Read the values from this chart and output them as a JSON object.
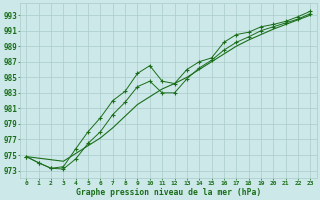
{
  "x": [
    0,
    1,
    2,
    3,
    4,
    5,
    6,
    7,
    8,
    9,
    10,
    11,
    12,
    13,
    14,
    15,
    16,
    17,
    18,
    19,
    20,
    21,
    22,
    23
  ],
  "line_smooth": [
    974.8,
    974.6,
    974.4,
    974.2,
    975.2,
    976.2,
    977.2,
    978.5,
    980.0,
    981.5,
    982.5,
    983.5,
    984.2,
    985.0,
    986.0,
    987.0,
    988.0,
    989.0,
    989.8,
    990.5,
    991.2,
    991.8,
    992.4,
    993.0
  ],
  "line_upper": [
    974.8,
    974.0,
    973.3,
    973.5,
    975.8,
    978.0,
    979.8,
    982.0,
    983.2,
    985.5,
    986.5,
    984.5,
    984.2,
    986.0,
    987.0,
    987.5,
    989.5,
    990.5,
    990.8,
    991.5,
    991.8,
    992.2,
    992.8,
    993.5
  ],
  "line_lower": [
    974.8,
    974.0,
    973.3,
    973.2,
    974.5,
    976.5,
    978.0,
    980.2,
    981.8,
    983.8,
    984.5,
    983.0,
    983.0,
    984.8,
    986.2,
    987.2,
    988.5,
    989.5,
    990.2,
    991.0,
    991.5,
    992.0,
    992.5,
    993.2
  ],
  "bg_color": "#cce8e8",
  "grid_color": "#aacccc",
  "line_color": "#1a6e1a",
  "xlabel": "Graphe pression niveau de la mer (hPa)",
  "ylabel_min": 973,
  "ylabel_max": 993,
  "ylabel_step": 2,
  "xlim": [
    -0.5,
    23.5
  ],
  "ylim": [
    972.0,
    994.5
  ]
}
